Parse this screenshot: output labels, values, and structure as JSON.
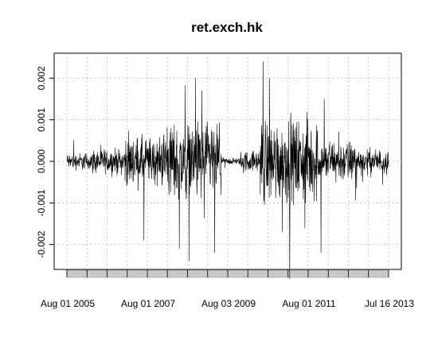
{
  "chart_data": {
    "type": "line",
    "title": "ret.exch.hk",
    "xlabel": "",
    "ylabel": "",
    "ylim": [
      -0.0026,
      0.0026
    ],
    "grid": true,
    "x_tick_labels": [
      "Aug 01 2005",
      "Aug 01 2007",
      "Aug 03 2009",
      "Aug 01 2011",
      "Jul 16 2013"
    ],
    "y_ticks": [
      -0.002,
      -0.001,
      0.0,
      0.001,
      0.002
    ],
    "y_tick_labels": [
      "-0.002",
      "-0.001",
      "0.000",
      "0.001",
      "0.002"
    ],
    "x_range": [
      "2005-06-01",
      "2013-09-30"
    ],
    "series": [
      {
        "values_note": "",
        "values": []
      }
    ]
  }
}
